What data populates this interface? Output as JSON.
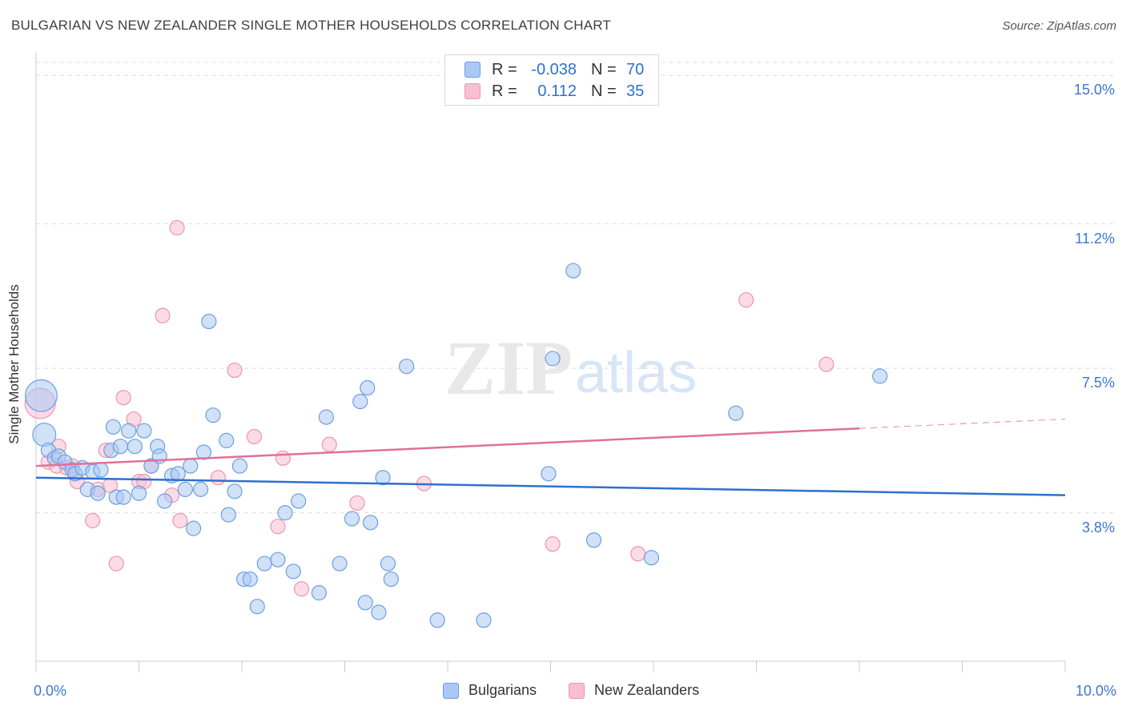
{
  "header": {
    "title": "BULGARIAN VS NEW ZEALANDER SINGLE MOTHER HOUSEHOLDS CORRELATION CHART",
    "source": "Source: ZipAtlas.com"
  },
  "watermark": {
    "zip": "ZIP",
    "atlas": "atlas"
  },
  "colors": {
    "blue_fill": "#aac8f3",
    "blue_stroke": "#6d9ee2",
    "blue_line": "#2f6fd0",
    "pink_fill": "#f7bfd1",
    "pink_stroke": "#ee93b3",
    "pink_line": "#e0709a",
    "tick_text": "#3b78cf",
    "grid": "#dddddd"
  },
  "legend": {
    "rows": [
      {
        "r_label": "R =",
        "r_value": "-0.038",
        "n_label": "N =",
        "n_value": "70"
      },
      {
        "r_label": "R =",
        "r_value": "0.112",
        "n_label": "N =",
        "n_value": "35"
      }
    ]
  },
  "bottom_legend": {
    "series1": "Bulgarians",
    "series2": "New Zealanders"
  },
  "chart_data": {
    "type": "scatter",
    "title": "BULGARIAN VS NEW ZEALANDER SINGLE MOTHER HOUSEHOLDS CORRELATION CHART",
    "xlabel": "",
    "ylabel": "Single Mother Households",
    "xlim": [
      0,
      10
    ],
    "ylim": [
      0,
      15.6
    ],
    "x_tick_labels": [
      {
        "value": 0,
        "label": "0.0%"
      },
      {
        "value": 10,
        "label": "10.0%"
      }
    ],
    "y_tick_labels": [
      {
        "value": 3.8,
        "label": "3.8%"
      },
      {
        "value": 7.5,
        "label": "7.5%"
      },
      {
        "value": 11.2,
        "label": "11.2%"
      },
      {
        "value": 15.0,
        "label": "15.0%"
      }
    ],
    "y_gridlines": [
      3.8,
      7.5,
      11.2,
      15.0
    ],
    "x_minor_ticks": [
      0,
      1,
      2,
      3,
      4,
      5,
      6,
      7,
      8,
      9,
      10
    ],
    "series": [
      {
        "name": "Bulgarians",
        "color": "#aac8f3",
        "trend": {
          "x": [
            0,
            10
          ],
          "y": [
            4.7,
            4.25
          ],
          "dashed_from": null
        },
        "points": [
          {
            "x": 0.05,
            "y": 6.8,
            "size": 2.2
          },
          {
            "x": 0.08,
            "y": 5.8,
            "size": 1.6
          },
          {
            "x": 0.12,
            "y": 5.4
          },
          {
            "x": 0.18,
            "y": 5.2
          },
          {
            "x": 0.22,
            "y": 5.25
          },
          {
            "x": 0.28,
            "y": 5.1
          },
          {
            "x": 0.35,
            "y": 4.9
          },
          {
            "x": 0.38,
            "y": 4.8
          },
          {
            "x": 0.45,
            "y": 4.95
          },
          {
            "x": 0.5,
            "y": 4.4
          },
          {
            "x": 0.55,
            "y": 4.85
          },
          {
            "x": 0.6,
            "y": 4.3
          },
          {
            "x": 0.63,
            "y": 4.9
          },
          {
            "x": 0.73,
            "y": 5.4
          },
          {
            "x": 0.75,
            "y": 6.0
          },
          {
            "x": 0.78,
            "y": 4.2
          },
          {
            "x": 0.82,
            "y": 5.5
          },
          {
            "x": 0.85,
            "y": 4.2
          },
          {
            "x": 0.9,
            "y": 5.9
          },
          {
            "x": 0.96,
            "y": 5.5
          },
          {
            "x": 1.0,
            "y": 4.3
          },
          {
            "x": 1.05,
            "y": 5.9
          },
          {
            "x": 1.12,
            "y": 5.0
          },
          {
            "x": 1.18,
            "y": 5.5
          },
          {
            "x": 1.2,
            "y": 5.25
          },
          {
            "x": 1.25,
            "y": 4.1
          },
          {
            "x": 1.32,
            "y": 4.75
          },
          {
            "x": 1.38,
            "y": 4.8
          },
          {
            "x": 1.45,
            "y": 4.4
          },
          {
            "x": 1.5,
            "y": 5.0
          },
          {
            "x": 1.53,
            "y": 3.4
          },
          {
            "x": 1.6,
            "y": 4.4
          },
          {
            "x": 1.63,
            "y": 5.35
          },
          {
            "x": 1.68,
            "y": 8.7
          },
          {
            "x": 1.72,
            "y": 6.3
          },
          {
            "x": 1.85,
            "y": 5.65
          },
          {
            "x": 1.87,
            "y": 3.75
          },
          {
            "x": 1.93,
            "y": 4.35
          },
          {
            "x": 1.98,
            "y": 5.0
          },
          {
            "x": 2.02,
            "y": 2.1
          },
          {
            "x": 2.08,
            "y": 2.1
          },
          {
            "x": 2.15,
            "y": 1.4
          },
          {
            "x": 2.22,
            "y": 2.5
          },
          {
            "x": 2.35,
            "y": 2.6
          },
          {
            "x": 2.42,
            "y": 3.8
          },
          {
            "x": 2.5,
            "y": 2.3
          },
          {
            "x": 2.55,
            "y": 4.1
          },
          {
            "x": 2.75,
            "y": 1.75
          },
          {
            "x": 2.82,
            "y": 6.25
          },
          {
            "x": 2.95,
            "y": 2.5
          },
          {
            "x": 3.07,
            "y": 3.65
          },
          {
            "x": 3.2,
            "y": 1.5
          },
          {
            "x": 3.15,
            "y": 6.65
          },
          {
            "x": 3.22,
            "y": 7.0
          },
          {
            "x": 3.25,
            "y": 3.55
          },
          {
            "x": 3.33,
            "y": 1.25
          },
          {
            "x": 3.37,
            "y": 4.7
          },
          {
            "x": 3.42,
            "y": 2.5
          },
          {
            "x": 3.45,
            "y": 2.1
          },
          {
            "x": 3.6,
            "y": 7.55
          },
          {
            "x": 3.9,
            "y": 1.05
          },
          {
            "x": 4.35,
            "y": 1.05
          },
          {
            "x": 4.98,
            "y": 4.8
          },
          {
            "x": 5.02,
            "y": 7.75
          },
          {
            "x": 5.22,
            "y": 10.0
          },
          {
            "x": 5.42,
            "y": 3.1
          },
          {
            "x": 5.98,
            "y": 2.65
          },
          {
            "x": 6.8,
            "y": 6.35
          },
          {
            "x": 8.2,
            "y": 7.3
          }
        ]
      },
      {
        "name": "New Zealanders",
        "color": "#f7bfd1",
        "trend": {
          "x": [
            0,
            10
          ],
          "y": [
            5.0,
            6.2
          ],
          "dashed_from": 8.0
        },
        "points": [
          {
            "x": 0.04,
            "y": 6.6,
            "size": 2.1
          },
          {
            "x": 0.12,
            "y": 5.1
          },
          {
            "x": 0.2,
            "y": 5.0
          },
          {
            "x": 0.22,
            "y": 5.5
          },
          {
            "x": 0.3,
            "y": 4.95
          },
          {
            "x": 0.35,
            "y": 5.0
          },
          {
            "x": 0.4,
            "y": 4.6
          },
          {
            "x": 0.55,
            "y": 3.6
          },
          {
            "x": 0.6,
            "y": 4.4
          },
          {
            "x": 0.68,
            "y": 5.4
          },
          {
            "x": 0.72,
            "y": 4.5
          },
          {
            "x": 0.78,
            "y": 2.5
          },
          {
            "x": 0.85,
            "y": 6.75
          },
          {
            "x": 0.95,
            "y": 6.2
          },
          {
            "x": 1.0,
            "y": 4.6
          },
          {
            "x": 1.05,
            "y": 4.6
          },
          {
            "x": 1.12,
            "y": 5.0
          },
          {
            "x": 1.23,
            "y": 8.85
          },
          {
            "x": 1.32,
            "y": 4.25
          },
          {
            "x": 1.37,
            "y": 11.1
          },
          {
            "x": 1.4,
            "y": 3.6
          },
          {
            "x": 1.77,
            "y": 4.7
          },
          {
            "x": 1.93,
            "y": 7.45
          },
          {
            "x": 2.12,
            "y": 5.75
          },
          {
            "x": 2.35,
            "y": 3.45
          },
          {
            "x": 2.4,
            "y": 5.2
          },
          {
            "x": 2.58,
            "y": 1.85
          },
          {
            "x": 2.85,
            "y": 5.55
          },
          {
            "x": 3.12,
            "y": 4.05
          },
          {
            "x": 3.77,
            "y": 4.55
          },
          {
            "x": 5.02,
            "y": 3.0
          },
          {
            "x": 5.85,
            "y": 2.75
          },
          {
            "x": 6.9,
            "y": 9.25
          },
          {
            "x": 7.68,
            "y": 7.6
          }
        ]
      }
    ]
  }
}
